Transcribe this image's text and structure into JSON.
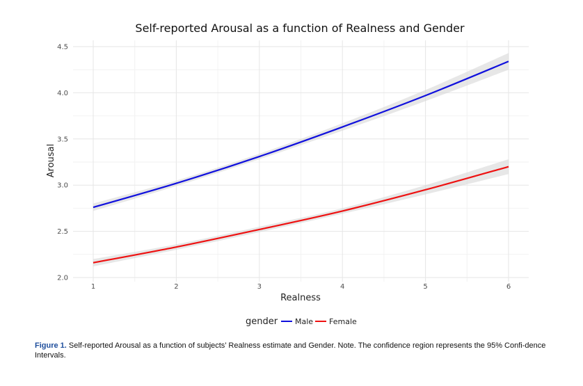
{
  "chart_data": {
    "type": "line",
    "title": "Self-reported Arousal as a function of Realness and Gender",
    "xlabel": "Realness",
    "ylabel": "Arousal",
    "xlim": [
      1,
      6
    ],
    "ylim": [
      2.0,
      4.5
    ],
    "x_ticks": [
      1,
      2,
      3,
      4,
      5,
      6
    ],
    "y_ticks": [
      "2.0",
      "2.5",
      "3.0",
      "3.5",
      "4.0",
      "4.5"
    ],
    "grid": true,
    "confidence_band": "95% CI",
    "legend": {
      "title": "gender",
      "position": "bottom"
    },
    "series": [
      {
        "name": "Male",
        "color": "#1010dd",
        "x": [
          1,
          2,
          3,
          4,
          5,
          6
        ],
        "y": [
          2.76,
          3.02,
          3.31,
          3.63,
          3.97,
          4.34
        ],
        "ci": [
          0.04,
          0.03,
          0.03,
          0.04,
          0.06,
          0.09
        ]
      },
      {
        "name": "Female",
        "color": "#ee1111",
        "x": [
          1,
          2,
          3,
          4,
          5,
          6
        ],
        "y": [
          2.16,
          2.33,
          2.52,
          2.72,
          2.95,
          3.2
        ],
        "ci": [
          0.04,
          0.03,
          0.03,
          0.03,
          0.05,
          0.08
        ]
      }
    ]
  },
  "caption": {
    "label": "Figure 1.",
    "text": "Self-reported Arousal as a function of subjects’ Realness estimate and Gender. Note. The confidence region represents the 95% Confi-dence Intervals."
  }
}
